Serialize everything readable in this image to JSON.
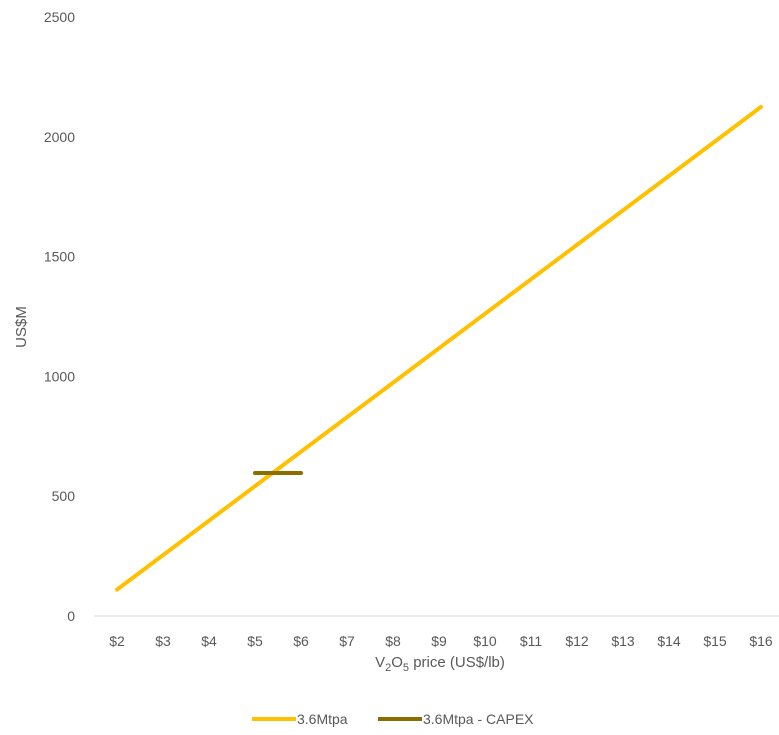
{
  "chart_data": {
    "type": "line",
    "x": [
      2,
      3,
      4,
      5,
      6,
      7,
      8,
      9,
      10,
      11,
      12,
      13,
      14,
      15,
      16
    ],
    "x_tick_labels": [
      "$2",
      "$3",
      "$4",
      "$5",
      "$6",
      "$7",
      "$8",
      "$9",
      "$10",
      "$11",
      "$12",
      "$13",
      "$14",
      "$15",
      "$16"
    ],
    "y_tick_labels": [
      "0",
      "500",
      "1000",
      "1500",
      "2000",
      "2500"
    ],
    "ylim": [
      0,
      2500
    ],
    "ylabel": "US$M",
    "xlabel": {
      "main": "V",
      "sub1": "2",
      "mid": "O",
      "sub2": "5",
      "rest": " price (US$/lb)"
    },
    "grid": false,
    "legend_position": "bottom",
    "series": [
      {
        "name": "3.6Mtpa",
        "color": "#FFC000",
        "x": [
          2,
          16
        ],
        "values": [
          110,
          2125
        ]
      },
      {
        "name": "3.6Mtpa - CAPEX",
        "color": "#8B6E00",
        "x": [
          5,
          6
        ],
        "values": [
          597,
          597
        ]
      }
    ]
  }
}
